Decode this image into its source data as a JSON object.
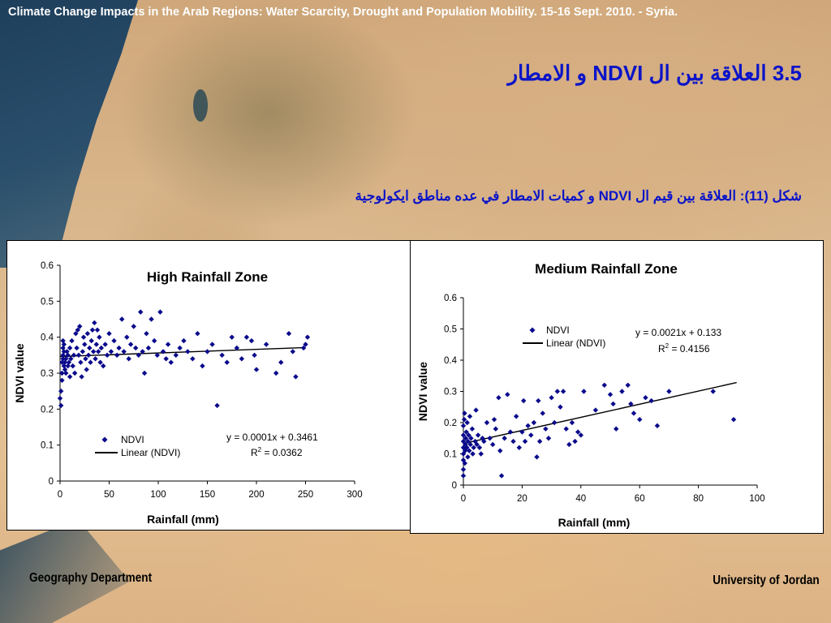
{
  "header": {
    "topline": "Climate Change Impacts in the Arab Regions: Water Scarcity, Drought and Population Mobility. 15-16 Sept. 2010. - Syria.",
    "heading": "3.5 العلاقة بين ال NDVI و الامطار",
    "caption": "شكل (11): العلاقة بين قيم ال NDVI و كميات الامطار في عده مناطق ايكولوجية"
  },
  "footer": {
    "left": "Geography Department",
    "right": "University of Jordan"
  },
  "colors": {
    "marker": "#0a0a8c",
    "title_blue": "#0a14c8"
  },
  "chart_data": [
    {
      "type": "scatter",
      "title": "High Rainfall Zone",
      "xlabel": "Rainfall (mm)",
      "ylabel": "NDVI value",
      "xlim": [
        0,
        300
      ],
      "ylim": [
        0,
        0.6
      ],
      "xticks": [
        "0",
        "50",
        "100",
        "150",
        "200",
        "250",
        "300"
      ],
      "yticks": [
        "0",
        "0.1",
        "0.2",
        "0.3",
        "0.4",
        "0.5",
        "0.6"
      ],
      "legend": {
        "series": "NDVI",
        "trend": "Linear (NDVI)",
        "placement": "bottom-left"
      },
      "equation": "y = 0.0001x + 0.3461",
      "r2": "R2 = 0.0362",
      "trendline": {
        "slope": 0.0001,
        "intercept": 0.3461,
        "x_range": [
          0,
          250
        ]
      },
      "series": [
        {
          "name": "NDVI",
          "points": [
            [
              0,
              0.23
            ],
            [
              1,
              0.21
            ],
            [
              1,
              0.25
            ],
            [
              2,
              0.28
            ],
            [
              2,
              0.3
            ],
            [
              2,
              0.33
            ],
            [
              3,
              0.34
            ],
            [
              3,
              0.35
            ],
            [
              3,
              0.37
            ],
            [
              3,
              0.39
            ],
            [
              4,
              0.32
            ],
            [
              4,
              0.36
            ],
            [
              4,
              0.38
            ],
            [
              5,
              0.31
            ],
            [
              5,
              0.33
            ],
            [
              6,
              0.3
            ],
            [
              6,
              0.34
            ],
            [
              7,
              0.36
            ],
            [
              8,
              0.32
            ],
            [
              8,
              0.35
            ],
            [
              9,
              0.33
            ],
            [
              10,
              0.37
            ],
            [
              10,
              0.29
            ],
            [
              11,
              0.34
            ],
            [
              12,
              0.39
            ],
            [
              13,
              0.32
            ],
            [
              14,
              0.35
            ],
            [
              15,
              0.3
            ],
            [
              16,
              0.41
            ],
            [
              17,
              0.37
            ],
            [
              18,
              0.42
            ],
            [
              19,
              0.35
            ],
            [
              20,
              0.43
            ],
            [
              21,
              0.33
            ],
            [
              22,
              0.29
            ],
            [
              23,
              0.36
            ],
            [
              24,
              0.4
            ],
            [
              25,
              0.38
            ],
            [
              26,
              0.34
            ],
            [
              27,
              0.31
            ],
            [
              28,
              0.41
            ],
            [
              29,
              0.35
            ],
            [
              30,
              0.37
            ],
            [
              31,
              0.33
            ],
            [
              32,
              0.39
            ],
            [
              33,
              0.42
            ],
            [
              34,
              0.36
            ],
            [
              35,
              0.44
            ],
            [
              36,
              0.34
            ],
            [
              37,
              0.38
            ],
            [
              38,
              0.42
            ],
            [
              39,
              0.36
            ],
            [
              40,
              0.4
            ],
            [
              41,
              0.33
            ],
            [
              42,
              0.37
            ],
            [
              44,
              0.32
            ],
            [
              46,
              0.38
            ],
            [
              48,
              0.35
            ],
            [
              50,
              0.41
            ],
            [
              52,
              0.36
            ],
            [
              55,
              0.39
            ],
            [
              58,
              0.35
            ],
            [
              60,
              0.37
            ],
            [
              63,
              0.45
            ],
            [
              65,
              0.36
            ],
            [
              68,
              0.4
            ],
            [
              70,
              0.34
            ],
            [
              72,
              0.38
            ],
            [
              75,
              0.43
            ],
            [
              77,
              0.37
            ],
            [
              80,
              0.35
            ],
            [
              82,
              0.47
            ],
            [
              84,
              0.36
            ],
            [
              86,
              0.3
            ],
            [
              88,
              0.41
            ],
            [
              90,
              0.37
            ],
            [
              93,
              0.45
            ],
            [
              96,
              0.39
            ],
            [
              99,
              0.35
            ],
            [
              102,
              0.47
            ],
            [
              105,
              0.36
            ],
            [
              108,
              0.34
            ],
            [
              110,
              0.38
            ],
            [
              113,
              0.33
            ],
            [
              118,
              0.35
            ],
            [
              122,
              0.37
            ],
            [
              126,
              0.39
            ],
            [
              130,
              0.36
            ],
            [
              135,
              0.34
            ],
            [
              140,
              0.41
            ],
            [
              145,
              0.32
            ],
            [
              150,
              0.36
            ],
            [
              155,
              0.38
            ],
            [
              160,
              0.21
            ],
            [
              165,
              0.35
            ],
            [
              170,
              0.33
            ],
            [
              175,
              0.4
            ],
            [
              180,
              0.37
            ],
            [
              185,
              0.34
            ],
            [
              190,
              0.4
            ],
            [
              195,
              0.39
            ],
            [
              198,
              0.35
            ],
            [
              200,
              0.31
            ],
            [
              210,
              0.38
            ],
            [
              220,
              0.3
            ],
            [
              225,
              0.33
            ],
            [
              233,
              0.41
            ],
            [
              237,
              0.36
            ],
            [
              240,
              0.29
            ],
            [
              248,
              0.37
            ],
            [
              250,
              0.38
            ],
            [
              252,
              0.4
            ]
          ]
        }
      ]
    },
    {
      "type": "scatter",
      "title": "Medium Rainfall Zone",
      "xlabel": "Rainfall (mm)",
      "ylabel": "NDVI value",
      "xlim": [
        0,
        100
      ],
      "ylim": [
        0,
        0.6
      ],
      "xticks": [
        "0",
        "20",
        "40",
        "60",
        "80",
        "100"
      ],
      "yticks": [
        "0",
        "0.1",
        "0.2",
        "0.3",
        "0.4",
        "0.5",
        "0.6"
      ],
      "legend": {
        "series": "NDVI",
        "trend": "Linear (NDVI)",
        "placement": "top-left"
      },
      "equation": "y = 0.0021x + 0.133",
      "r2": "R2 = 0.4156",
      "trendline": {
        "slope": 0.0021,
        "intercept": 0.133,
        "x_range": [
          0,
          93
        ]
      },
      "series": [
        {
          "name": "NDVI",
          "points": [
            [
              0,
              0.03
            ],
            [
              0,
              0.05
            ],
            [
              0,
              0.08
            ],
            [
              0,
              0.1
            ],
            [
              0,
              0.12
            ],
            [
              0,
              0.14
            ],
            [
              0,
              0.16
            ],
            [
              0,
              0.19
            ],
            [
              0.3,
              0.21
            ],
            [
              0.4,
              0.23
            ],
            [
              0.5,
              0.07
            ],
            [
              0.6,
              0.11
            ],
            [
              0.7,
              0.13
            ],
            [
              0.8,
              0.15
            ],
            [
              1,
              0.17
            ],
            [
              1.2,
              0.12
            ],
            [
              1.3,
              0.2
            ],
            [
              1.5,
              0.09
            ],
            [
              1.6,
              0.14
            ],
            [
              1.8,
              0.16
            ],
            [
              2,
              0.11
            ],
            [
              2.2,
              0.22
            ],
            [
              2.4,
              0.13
            ],
            [
              2.6,
              0.15
            ],
            [
              3,
              0.18
            ],
            [
              3.2,
              0.1
            ],
            [
              3.5,
              0.12
            ],
            [
              4,
              0.14
            ],
            [
              4.3,
              0.24
            ],
            [
              4.6,
              0.13
            ],
            [
              5,
              0.16
            ],
            [
              5.5,
              0.12
            ],
            [
              6,
              0.1
            ],
            [
              6.5,
              0.15
            ],
            [
              7,
              0.14
            ],
            [
              8,
              0.2
            ],
            [
              9,
              0.15
            ],
            [
              10,
              0.13
            ],
            [
              10.5,
              0.21
            ],
            [
              11,
              0.18
            ],
            [
              12,
              0.28
            ],
            [
              12.5,
              0.11
            ],
            [
              13,
              0.03
            ],
            [
              14,
              0.15
            ],
            [
              15,
              0.29
            ],
            [
              16,
              0.17
            ],
            [
              17,
              0.14
            ],
            [
              18,
              0.22
            ],
            [
              19,
              0.12
            ],
            [
              20,
              0.17
            ],
            [
              20.5,
              0.27
            ],
            [
              21,
              0.14
            ],
            [
              22,
              0.19
            ],
            [
              23,
              0.16
            ],
            [
              24,
              0.2
            ],
            [
              25,
              0.09
            ],
            [
              25.5,
              0.27
            ],
            [
              26,
              0.14
            ],
            [
              27,
              0.23
            ],
            [
              28,
              0.18
            ],
            [
              29,
              0.15
            ],
            [
              30,
              0.28
            ],
            [
              31,
              0.2
            ],
            [
              32,
              0.3
            ],
            [
              33,
              0.25
            ],
            [
              34,
              0.3
            ],
            [
              35,
              0.18
            ],
            [
              36,
              0.13
            ],
            [
              37,
              0.2
            ],
            [
              38,
              0.14
            ],
            [
              39,
              0.17
            ],
            [
              40,
              0.16
            ],
            [
              41,
              0.3
            ],
            [
              45,
              0.24
            ],
            [
              48,
              0.32
            ],
            [
              50,
              0.29
            ],
            [
              51,
              0.26
            ],
            [
              52,
              0.18
            ],
            [
              54,
              0.3
            ],
            [
              56,
              0.32
            ],
            [
              57,
              0.26
            ],
            [
              58,
              0.23
            ],
            [
              60,
              0.21
            ],
            [
              62,
              0.28
            ],
            [
              64,
              0.27
            ],
            [
              66,
              0.19
            ],
            [
              70,
              0.3
            ],
            [
              85,
              0.3
            ],
            [
              92,
              0.21
            ]
          ]
        }
      ]
    }
  ]
}
